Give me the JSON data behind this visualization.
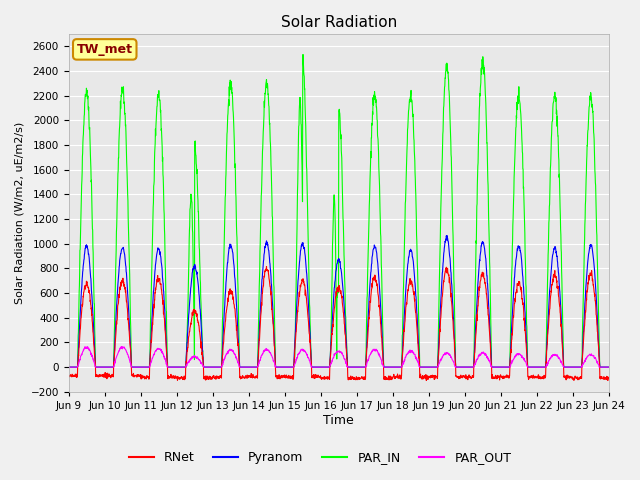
{
  "title": "Solar Radiation",
  "ylabel": "Solar Radiation (W/m2, uE/m2/s)",
  "xlabel": "Time",
  "ylim": [
    -200,
    2700
  ],
  "yticks": [
    -200,
    0,
    200,
    400,
    600,
    800,
    1000,
    1200,
    1400,
    1600,
    1800,
    2000,
    2200,
    2400,
    2600
  ],
  "figure_bg": "#f0f0f0",
  "plot_bg": "#e8e8e8",
  "series_colors": {
    "RNet": "#ff0000",
    "Pyranom": "#0000ff",
    "PAR_IN": "#00ff00",
    "PAR_OUT": "#ff00ff"
  },
  "legend_label": "TW_met",
  "legend_bg": "#ffff99",
  "legend_border": "#cc8800",
  "n_days": 15,
  "points_per_day": 144,
  "x_tick_labels": [
    "Jun 9",
    "Jun 10",
    "Jun 11",
    "Jun 12",
    "Jun 13",
    "Jun 14",
    "Jun 15",
    "Jun 16",
    "Jun 17",
    "Jun 18",
    "Jun 19",
    "Jun 20",
    "Jun 21",
    "Jun 22",
    "Jun 23",
    "Jun 24"
  ],
  "line_width": 0.8,
  "rnet_peaks": [
    680,
    700,
    720,
    450,
    620,
    800,
    700,
    650,
    730,
    700,
    800,
    750,
    680,
    750,
    760
  ],
  "pyranom_peaks": [
    980,
    970,
    960,
    820,
    990,
    1010,
    1000,
    870,
    980,
    950,
    1050,
    1010,
    980,
    970,
    990
  ],
  "par_in_peaks": [
    2230,
    2250,
    2200,
    1800,
    2300,
    2290,
    2490,
    2100,
    2210,
    2200,
    2430,
    2480,
    2200,
    2200,
    2190
  ],
  "par_out_peaks": [
    160,
    165,
    150,
    85,
    140,
    145,
    140,
    130,
    140,
    130,
    115,
    115,
    105,
    100,
    100
  ],
  "rnet_night": [
    -70,
    -70,
    -80,
    -90,
    -80,
    -80,
    -80,
    -90,
    -90,
    -80,
    -80,
    -80,
    -80,
    -80,
    -90
  ],
  "figsize": [
    6.4,
    4.8
  ],
  "dpi": 100
}
